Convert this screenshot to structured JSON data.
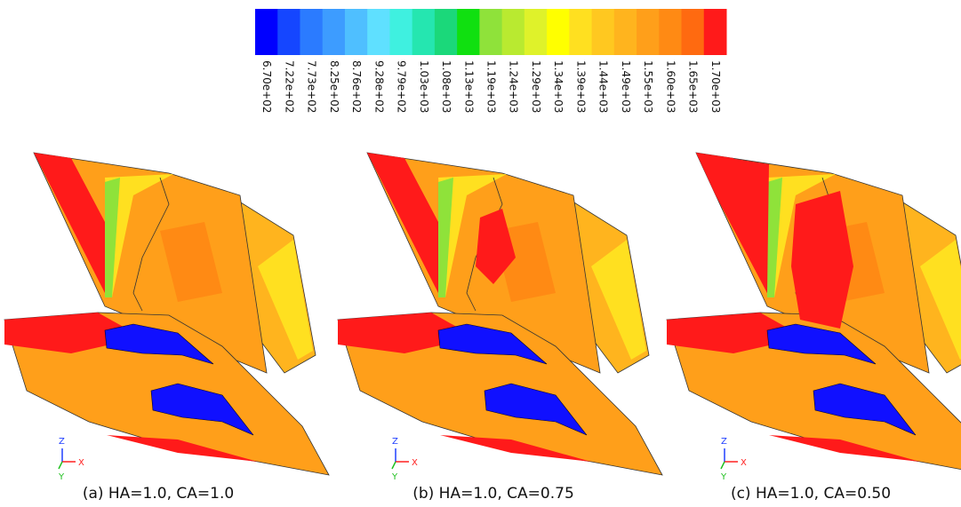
{
  "colorbar": {
    "labels": [
      "6.70e+02",
      "7.22e+02",
      "7.73e+02",
      "8.25e+02",
      "8.76e+02",
      "9.28e+02",
      "9.79e+02",
      "1.03e+03",
      "1.08e+03",
      "1.13e+03",
      "1.19e+03",
      "1.24e+03",
      "1.29e+03",
      "1.34e+03",
      "1.39e+03",
      "1.44e+03",
      "1.49e+03",
      "1.55e+03",
      "1.60e+03",
      "1.65e+03",
      "1.70e+03"
    ],
    "colors": [
      "#0000ff",
      "#1546ff",
      "#2b7bff",
      "#3d9cff",
      "#4fbfff",
      "#5fe0ff",
      "#3ff0e0",
      "#25e6b0",
      "#1bd87a",
      "#10e010",
      "#8fe23a",
      "#b9ea30",
      "#dff22a",
      "#ffff00",
      "#ffe020",
      "#ffc820",
      "#ffb41e",
      "#ff9f1a",
      "#ff8a14",
      "#ff6a10",
      "#ff1a1a"
    ]
  },
  "panels": [
    {
      "caption": "(a) HA=1.0, CA=1.0",
      "axes": {
        "z": "Z",
        "x": "X",
        "y": "Y"
      }
    },
    {
      "caption": "(b) HA=1.0, CA=0.75",
      "axes": {
        "z": "Z",
        "x": "X",
        "y": "Y"
      }
    },
    {
      "caption": "(c) HA=1.0, CA=0.50",
      "axes": {
        "z": "Z",
        "x": "X",
        "y": "Y"
      }
    }
  ]
}
